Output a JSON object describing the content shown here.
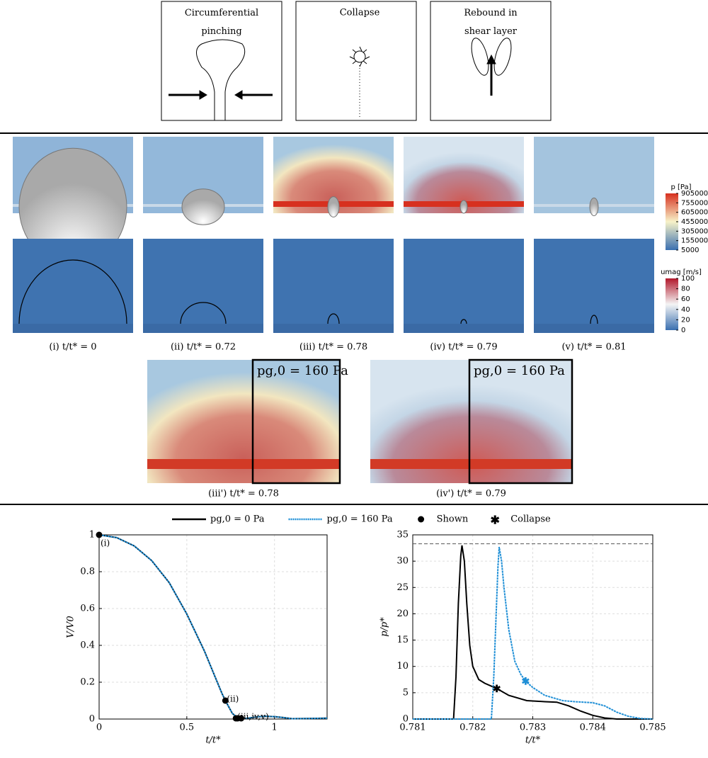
{
  "schematic": [
    "Circumferential pinching",
    "Collapse",
    "Rebound in shear layer"
  ],
  "panels": {
    "captions": [
      "(i) t/t* = 0",
      "(ii) t/t* = 0.72",
      "(iii) t/t* = 0.78",
      "(iv) t/t* = 0.79",
      "(v) t/t* = 0.81"
    ],
    "zoom_captions": [
      "(iii') t/t* = 0.78",
      "(iv') t/t* = 0.79"
    ],
    "inset_label": "pg,0 = 160 Pa"
  },
  "colorbars": [
    {
      "label": "p [Pa]",
      "lim": [
        5000,
        905000
      ],
      "ticks": [
        905000,
        755000,
        605000,
        455000,
        305000,
        155000,
        5000
      ],
      "colors": [
        "#3a6fb0",
        "#f7f2c8",
        "#d7301f"
      ]
    },
    {
      "label": "umag [m/s]",
      "lim": [
        0,
        100
      ],
      "ticks": [
        100,
        80,
        60,
        40,
        20,
        0
      ],
      "colors": [
        "#3a6fb0",
        "#f4f4f4",
        "#b2182b"
      ]
    }
  ],
  "legend": {
    "shown": "Shown",
    "collapse": "Collapse"
  },
  "chart_data": [
    {
      "type": "line",
      "xlabel": "t/t*",
      "ylabel": "V/V0",
      "xlim": [
        0,
        1.3
      ],
      "xticks": [
        0,
        0.5,
        1
      ],
      "ylim": [
        0,
        1
      ],
      "yticks": [
        0,
        0.2,
        0.4,
        0.6,
        0.8,
        1
      ],
      "grid": true,
      "series": [
        {
          "name": "pg,0 = 0 Pa",
          "color": "#000000",
          "x": [
            0,
            0.1,
            0.2,
            0.3,
            0.4,
            0.5,
            0.6,
            0.7,
            0.72,
            0.76,
            0.8,
            0.85,
            0.9,
            0.95,
            1,
            1.05,
            1.1,
            1.2,
            1.3
          ],
          "values": [
            1,
            0.985,
            0.94,
            0.86,
            0.74,
            0.57,
            0.37,
            0.14,
            0.1,
            0.03,
            0,
            0.005,
            0.012,
            0.015,
            0.013,
            0.008,
            0.002,
            0.003,
            0.005
          ]
        },
        {
          "name": "pg,0 = 160 Pa",
          "color": "#1f8fd6",
          "x": [
            0,
            0.1,
            0.2,
            0.3,
            0.4,
            0.5,
            0.6,
            0.7,
            0.72,
            0.76,
            0.8,
            0.85,
            0.9,
            0.95,
            1,
            1.05,
            1.1,
            1.2,
            1.3
          ],
          "values": [
            1,
            0.985,
            0.94,
            0.86,
            0.74,
            0.57,
            0.37,
            0.14,
            0.1,
            0.03,
            0,
            0.005,
            0.012,
            0.015,
            0.013,
            0.008,
            0.002,
            0.003,
            0.005
          ]
        }
      ],
      "points": {
        "x": [
          0,
          0.72,
          0.78,
          0.79,
          0.81
        ],
        "y": [
          1,
          0.1,
          0.004,
          0.004,
          0.004
        ],
        "labels": [
          "(i)",
          "(ii)",
          "(iii,iv,v)",
          null,
          null
        ],
        "color": "#000000"
      }
    },
    {
      "type": "line",
      "xlabel": "t/t*",
      "ylabel": "p/p*",
      "xlim": [
        0.781,
        0.785
      ],
      "xticks": [
        0.781,
        0.782,
        0.783,
        0.784,
        0.785
      ],
      "ylim": [
        0,
        35
      ],
      "yticks": [
        0,
        5,
        10,
        15,
        20,
        25,
        30,
        35
      ],
      "grid": true,
      "reference_line": 33.3,
      "series": [
        {
          "name": "pg,0 = 0 Pa",
          "color": "#000000",
          "x": [
            0.781,
            0.7816,
            0.78168,
            0.78172,
            0.78176,
            0.7818,
            0.78182,
            0.78186,
            0.7819,
            0.78195,
            0.782,
            0.7821,
            0.7822,
            0.7824,
            0.7826,
            0.7829,
            0.7832,
            0.7834,
            0.7836,
            0.7838,
            0.784,
            0.7842,
            0.7844,
            0.785
          ],
          "values": [
            0,
            0,
            0,
            8,
            22,
            31,
            33,
            30,
            22,
            14,
            10,
            7.5,
            6.8,
            5.8,
            4.5,
            3.5,
            3.3,
            3.2,
            2.5,
            1.5,
            0.7,
            0.2,
            0,
            0
          ]
        },
        {
          "name": "pg,0 = 160 Pa",
          "color": "#1f8fd6",
          "x": [
            0.781,
            0.7822,
            0.78231,
            0.78235,
            0.78239,
            0.78242,
            0.78244,
            0.78248,
            0.78252,
            0.7826,
            0.7827,
            0.7828,
            0.78288,
            0.783,
            0.7832,
            0.7835,
            0.7837,
            0.784,
            0.7842,
            0.7844,
            0.7846,
            0.7848,
            0.785
          ],
          "values": [
            0,
            0,
            0,
            8,
            20,
            29,
            32.7,
            30,
            25,
            17,
            11,
            8.5,
            7.2,
            6,
            4.5,
            3.5,
            3.3,
            3.1,
            2.5,
            1.3,
            0.5,
            0.1,
            0
          ]
        }
      ],
      "collapse": {
        "x": [
          0.7824,
          0.78288
        ],
        "y": [
          5.8,
          7.2
        ],
        "colors": [
          "#000000",
          "#1f8fd6"
        ]
      }
    }
  ]
}
